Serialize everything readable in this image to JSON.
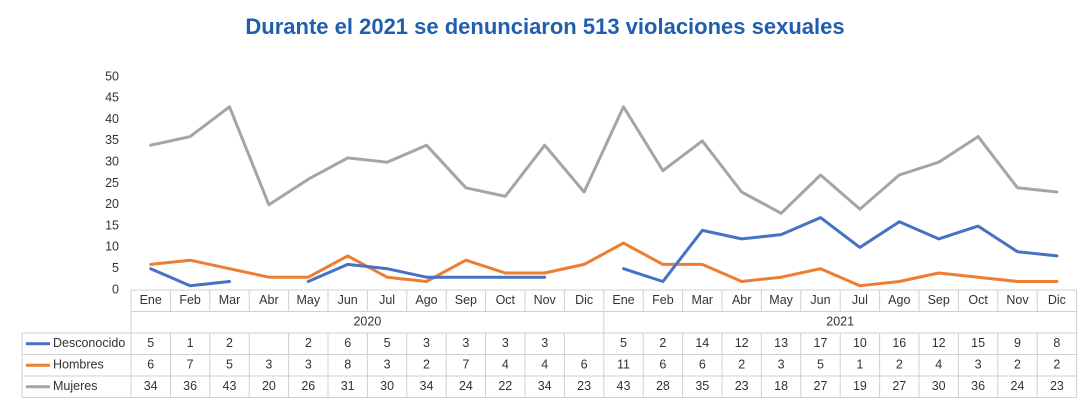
{
  "chart_data": {
    "type": "line",
    "title": "Durante el 2021 se denunciaron 513 violaciones sexuales",
    "xlabel": "",
    "ylabel": "",
    "ylim": [
      0,
      50
    ],
    "yticks": [
      0,
      5,
      10,
      15,
      20,
      25,
      30,
      35,
      40,
      45,
      50
    ],
    "grid": false,
    "legend": "table",
    "years": [
      {
        "label": "2020",
        "months": [
          "Ene",
          "Feb",
          "Mar",
          "Abr",
          "May",
          "Jun",
          "Jul",
          "Ago",
          "Sep",
          "Oct",
          "Nov",
          "Dic"
        ]
      },
      {
        "label": "2021",
        "months": [
          "Ene",
          "Feb",
          "Mar",
          "Abr",
          "May",
          "Jun",
          "Jul",
          "Ago",
          "Sep",
          "Oct",
          "Nov",
          "Dic"
        ]
      }
    ],
    "series": [
      {
        "name": "Desconocido",
        "color": "#4472c4",
        "values": [
          5,
          1,
          2,
          null,
          2,
          6,
          5,
          3,
          3,
          3,
          3,
          null,
          5,
          2,
          14,
          12,
          13,
          17,
          10,
          16,
          12,
          15,
          9,
          8
        ]
      },
      {
        "name": "Hombres",
        "color": "#ed7d31",
        "values": [
          6,
          7,
          5,
          3,
          3,
          8,
          3,
          2,
          7,
          4,
          4,
          6,
          11,
          6,
          6,
          2,
          3,
          5,
          1,
          2,
          4,
          3,
          2,
          2
        ]
      },
      {
        "name": "Mujeres",
        "color": "#a5a5a5",
        "values": [
          34,
          36,
          43,
          20,
          26,
          31,
          30,
          34,
          24,
          22,
          34,
          23,
          43,
          28,
          35,
          23,
          18,
          27,
          19,
          27,
          30,
          36,
          24,
          23
        ]
      }
    ]
  }
}
